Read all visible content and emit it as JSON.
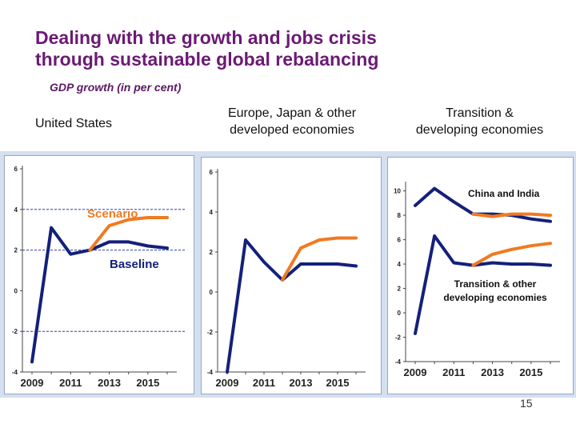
{
  "slide": {
    "title_line1": "Dealing with the growth and jobs crisis",
    "title_line2": "through sustainable global rebalancing",
    "subtitle": "GDP growth (in per cent)",
    "page_number": "15"
  },
  "colors": {
    "title": "#6b1a74",
    "baseline": "#14207a",
    "scenario": "#f07a21",
    "guide": "#2c3fb8"
  },
  "chart_data": [
    {
      "type": "line",
      "title": "United States",
      "x": [
        2009,
        2010,
        2011,
        2012,
        2013,
        2014,
        2015,
        2016
      ],
      "x_tick_labels": [
        "2009",
        "2011",
        "2013",
        "2015"
      ],
      "y_ticks": [
        "-4",
        "-2",
        "0",
        "2",
        "4",
        "6"
      ],
      "ylim": [
        -4,
        6
      ],
      "dashed_reference_lines": [
        4,
        2,
        -2
      ],
      "grid": false,
      "series": [
        {
          "name": "Baseline",
          "values": [
            -3.5,
            3.1,
            1.8,
            2.0,
            2.4,
            2.4,
            2.2,
            2.1
          ]
        },
        {
          "name": "Scenario",
          "values": [
            null,
            null,
            null,
            2.0,
            3.2,
            3.5,
            3.6,
            3.6
          ]
        }
      ],
      "annotations": [
        "Scenario",
        "Baseline"
      ]
    },
    {
      "type": "line",
      "title": "Europe, Japan & other\ndeveloped economies",
      "x": [
        2009,
        2010,
        2011,
        2012,
        2013,
        2014,
        2015,
        2016
      ],
      "x_tick_labels": [
        "2009",
        "2011",
        "2013",
        "2015"
      ],
      "y_ticks": [
        "-4",
        "-2",
        "0",
        "2",
        "4",
        "6"
      ],
      "ylim": [
        -4,
        6
      ],
      "grid": false,
      "series": [
        {
          "values": [
            -4.0,
            2.6,
            1.5,
            0.6,
            1.4,
            1.4,
            1.4,
            1.3
          ]
        },
        {
          "values": [
            null,
            null,
            null,
            0.6,
            2.2,
            2.6,
            2.7,
            2.7
          ]
        }
      ]
    },
    {
      "type": "line",
      "title": "Transition &\ndeveloping economies",
      "x": [
        2009,
        2010,
        2011,
        2012,
        2013,
        2014,
        2015,
        2016
      ],
      "x_tick_labels": [
        "2009",
        "2011",
        "2013",
        "2015"
      ],
      "y_ticks": [
        "-4",
        "-2",
        "0",
        "2",
        "4",
        "6",
        "8",
        "10"
      ],
      "ylim": [
        -4,
        10.5
      ],
      "grid": false,
      "series": [
        {
          "group": "China and India",
          "kind": "baseline",
          "values": [
            8.8,
            10.2,
            9.1,
            8.1,
            8.1,
            8.0,
            7.7,
            7.5
          ]
        },
        {
          "group": "China and India",
          "kind": "scenario",
          "values": [
            null,
            null,
            null,
            8.1,
            7.9,
            8.1,
            8.1,
            8.0
          ]
        },
        {
          "group": "Transition & other developing economies",
          "kind": "baseline",
          "values": [
            -1.7,
            6.3,
            4.1,
            3.9,
            4.1,
            4.0,
            4.0,
            3.9
          ]
        },
        {
          "group": "Transition & other developing economies",
          "kind": "scenario",
          "values": [
            null,
            null,
            null,
            3.9,
            4.8,
            5.2,
            5.5,
            5.7
          ]
        }
      ],
      "annotations": [
        "China and India",
        "Transition & other\ndeveloping economies"
      ]
    }
  ]
}
